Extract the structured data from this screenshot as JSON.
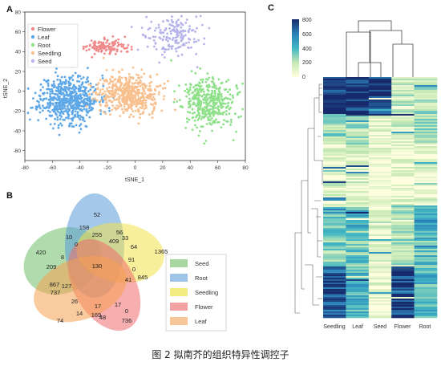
{
  "panels": {
    "a": "A",
    "b": "B",
    "c": "C"
  },
  "caption": "图 2  拟南芥的组织特异性调控子",
  "colors": {
    "Flower": "#f08a8a",
    "Leaf": "#5fa8e8",
    "Root": "#8fe08a",
    "Seedling": "#f7c08e",
    "Seed": "#b6b2ea"
  },
  "chart_data": [
    {
      "type": "scatter",
      "xlabel": "tSNE_1",
      "ylabel": "tSNE_2",
      "xlim": [
        -80,
        80
      ],
      "ylim": [
        -70,
        80
      ],
      "xticks": [
        "-80",
        "-60",
        "-40",
        "-20",
        "0",
        "20",
        "40",
        "60",
        "80"
      ],
      "yticks": [
        "-60",
        "-40",
        "-20",
        "0",
        "20",
        "40",
        "60",
        "80"
      ],
      "legend": [
        "Flower",
        "Leaf",
        "Root",
        "Seedling",
        "Seed"
      ],
      "legend_position": "top-left",
      "clusters": [
        {
          "name": "Leaf",
          "cx": -48,
          "cy": -8,
          "sx": 14,
          "sy": 16,
          "n": 620
        },
        {
          "name": "Seedling",
          "cx": -5,
          "cy": -3,
          "sx": 15,
          "sy": 13,
          "n": 520
        },
        {
          "name": "Root",
          "cx": 54,
          "cy": -12,
          "sx": 12,
          "sy": 17,
          "n": 420
        },
        {
          "name": "Flower",
          "cx": -22,
          "cy": 45,
          "sx": 11,
          "sy": 5,
          "n": 120
        },
        {
          "name": "Seed",
          "cx": 28,
          "cy": 55,
          "sx": 15,
          "sy": 14,
          "n": 170
        }
      ]
    },
    {
      "type": "venn",
      "sets": [
        "Seed",
        "Root",
        "Seedling",
        "Flower",
        "Leaf"
      ],
      "region_values": [
        "52",
        "158",
        "255",
        "56",
        "33",
        "64",
        "1365",
        "10",
        "0",
        "409",
        "420",
        "209",
        "8",
        "130",
        "91",
        "0",
        "845",
        "41",
        "867",
        "127",
        "737",
        "26",
        "17",
        "17",
        "0",
        "74",
        "14",
        "169",
        "48",
        "736"
      ]
    },
    {
      "type": "heatmap",
      "colorbar_ticks": [
        "800",
        "600",
        "400",
        "200",
        "0"
      ],
      "columns": [
        "Seedling",
        "Leaf",
        "Seed",
        "Flower",
        "Root"
      ],
      "zmin": 0,
      "zmax": 800
    }
  ]
}
